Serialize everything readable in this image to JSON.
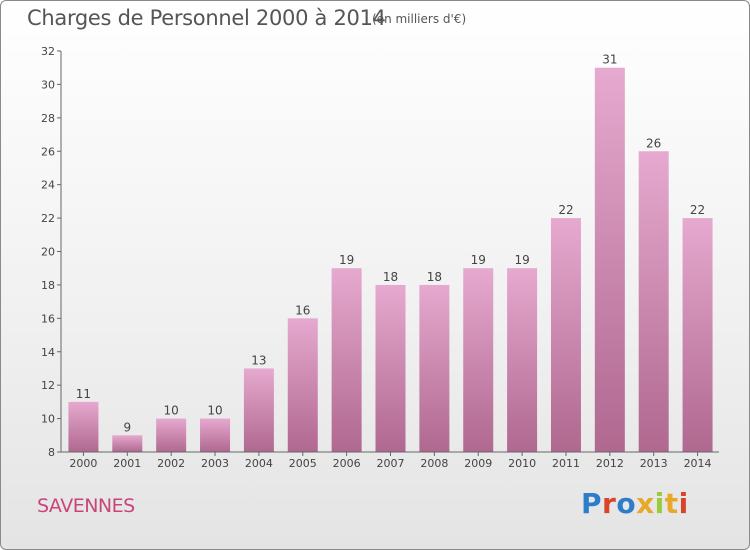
{
  "header": {
    "title": "Charges de Personnel 2000 à 2014",
    "unit": "(en milliers d'€)"
  },
  "footer": {
    "city": "SAVENNES",
    "logo": "Proxiti"
  },
  "colors": {
    "bar_top": "#e6a9cf",
    "bar_bottom": "#b0688f",
    "city": "#c8457a",
    "logo_letters": [
      "#2e7dc8",
      "#d8452b",
      "#2e7dc8",
      "#e8a92a",
      "#9acb3c",
      "#e8a92a",
      "#d8452b"
    ]
  },
  "chart_data": {
    "type": "bar",
    "title": "Charges de Personnel 2000 à 2014",
    "subtitle": "(en milliers d'€)",
    "categories": [
      "2000",
      "2001",
      "2002",
      "2003",
      "2004",
      "2005",
      "2006",
      "2007",
      "2008",
      "2009",
      "2010",
      "2011",
      "2012",
      "2013",
      "2014"
    ],
    "values": [
      11,
      9,
      10,
      10,
      13,
      16,
      19,
      18,
      18,
      19,
      19,
      22,
      31,
      26,
      22
    ],
    "ylim": [
      8,
      32
    ],
    "yticks": [
      8,
      10,
      12,
      14,
      16,
      18,
      20,
      22,
      24,
      26,
      28,
      30,
      32
    ],
    "grid": false,
    "xlabel": "",
    "ylabel": ""
  }
}
